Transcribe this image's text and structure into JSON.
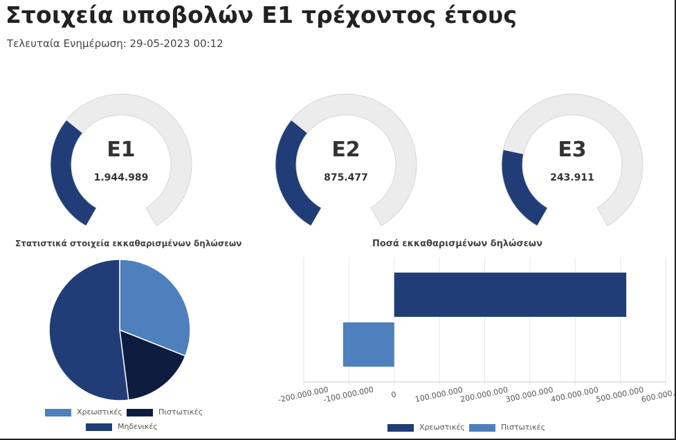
{
  "page": {
    "title": "Στοιχεία υποβολών Ε1 τρέχοντος έτους",
    "last_update": "Τελευταία Ενημέρωση: 29-05-2023 00:12"
  },
  "colors": {
    "dark_blue": "#213d78",
    "mid_blue": "#4e80bd",
    "navy": "#0e1d3f",
    "track": "#ececec"
  },
  "gauges": [
    {
      "label": "Ε1",
      "value": "1.944.989",
      "fraction": 0.33
    },
    {
      "label": "Ε2",
      "value": "875.477",
      "fraction": 0.33
    },
    {
      "label": "Ε3",
      "value": "243.911",
      "fraction": 0.24
    }
  ],
  "chart_data": [
    {
      "type": "pie",
      "title": "Στατιστικά στοιχεία εκκαθαρισμένων δηλώσεων",
      "legend_position": "bottom",
      "categories": [
        "Χρεωστικές",
        "Πιστωτικές",
        "Μηδενικές"
      ],
      "values": [
        31,
        17,
        52
      ],
      "colors": [
        "#4e80bd",
        "#0e1d3f",
        "#213d78"
      ]
    },
    {
      "type": "bar",
      "orientation": "horizontal",
      "title": "Ποσά  εκκαθαρισμένων δηλώσεων",
      "legend_position": "bottom",
      "xlim": [
        -200000000,
        600000000
      ],
      "xticks": [
        -200000000,
        -100000000,
        0,
        100000000,
        200000000,
        300000000,
        400000000,
        500000000,
        600000000
      ],
      "xtick_labels": [
        "-200.000.000",
        "-100.000.000",
        "0",
        "100.000.000",
        "200.000.000",
        "300.000.000",
        "400.000.000",
        "500.000.000",
        "600.000.000"
      ],
      "grid": true,
      "series": [
        {
          "name": "Χρεωστικές",
          "value": 513000000,
          "color": "#213d78"
        },
        {
          "name": "Πιστωτικές",
          "value": -113000000,
          "color": "#4e80bd"
        }
      ]
    }
  ]
}
